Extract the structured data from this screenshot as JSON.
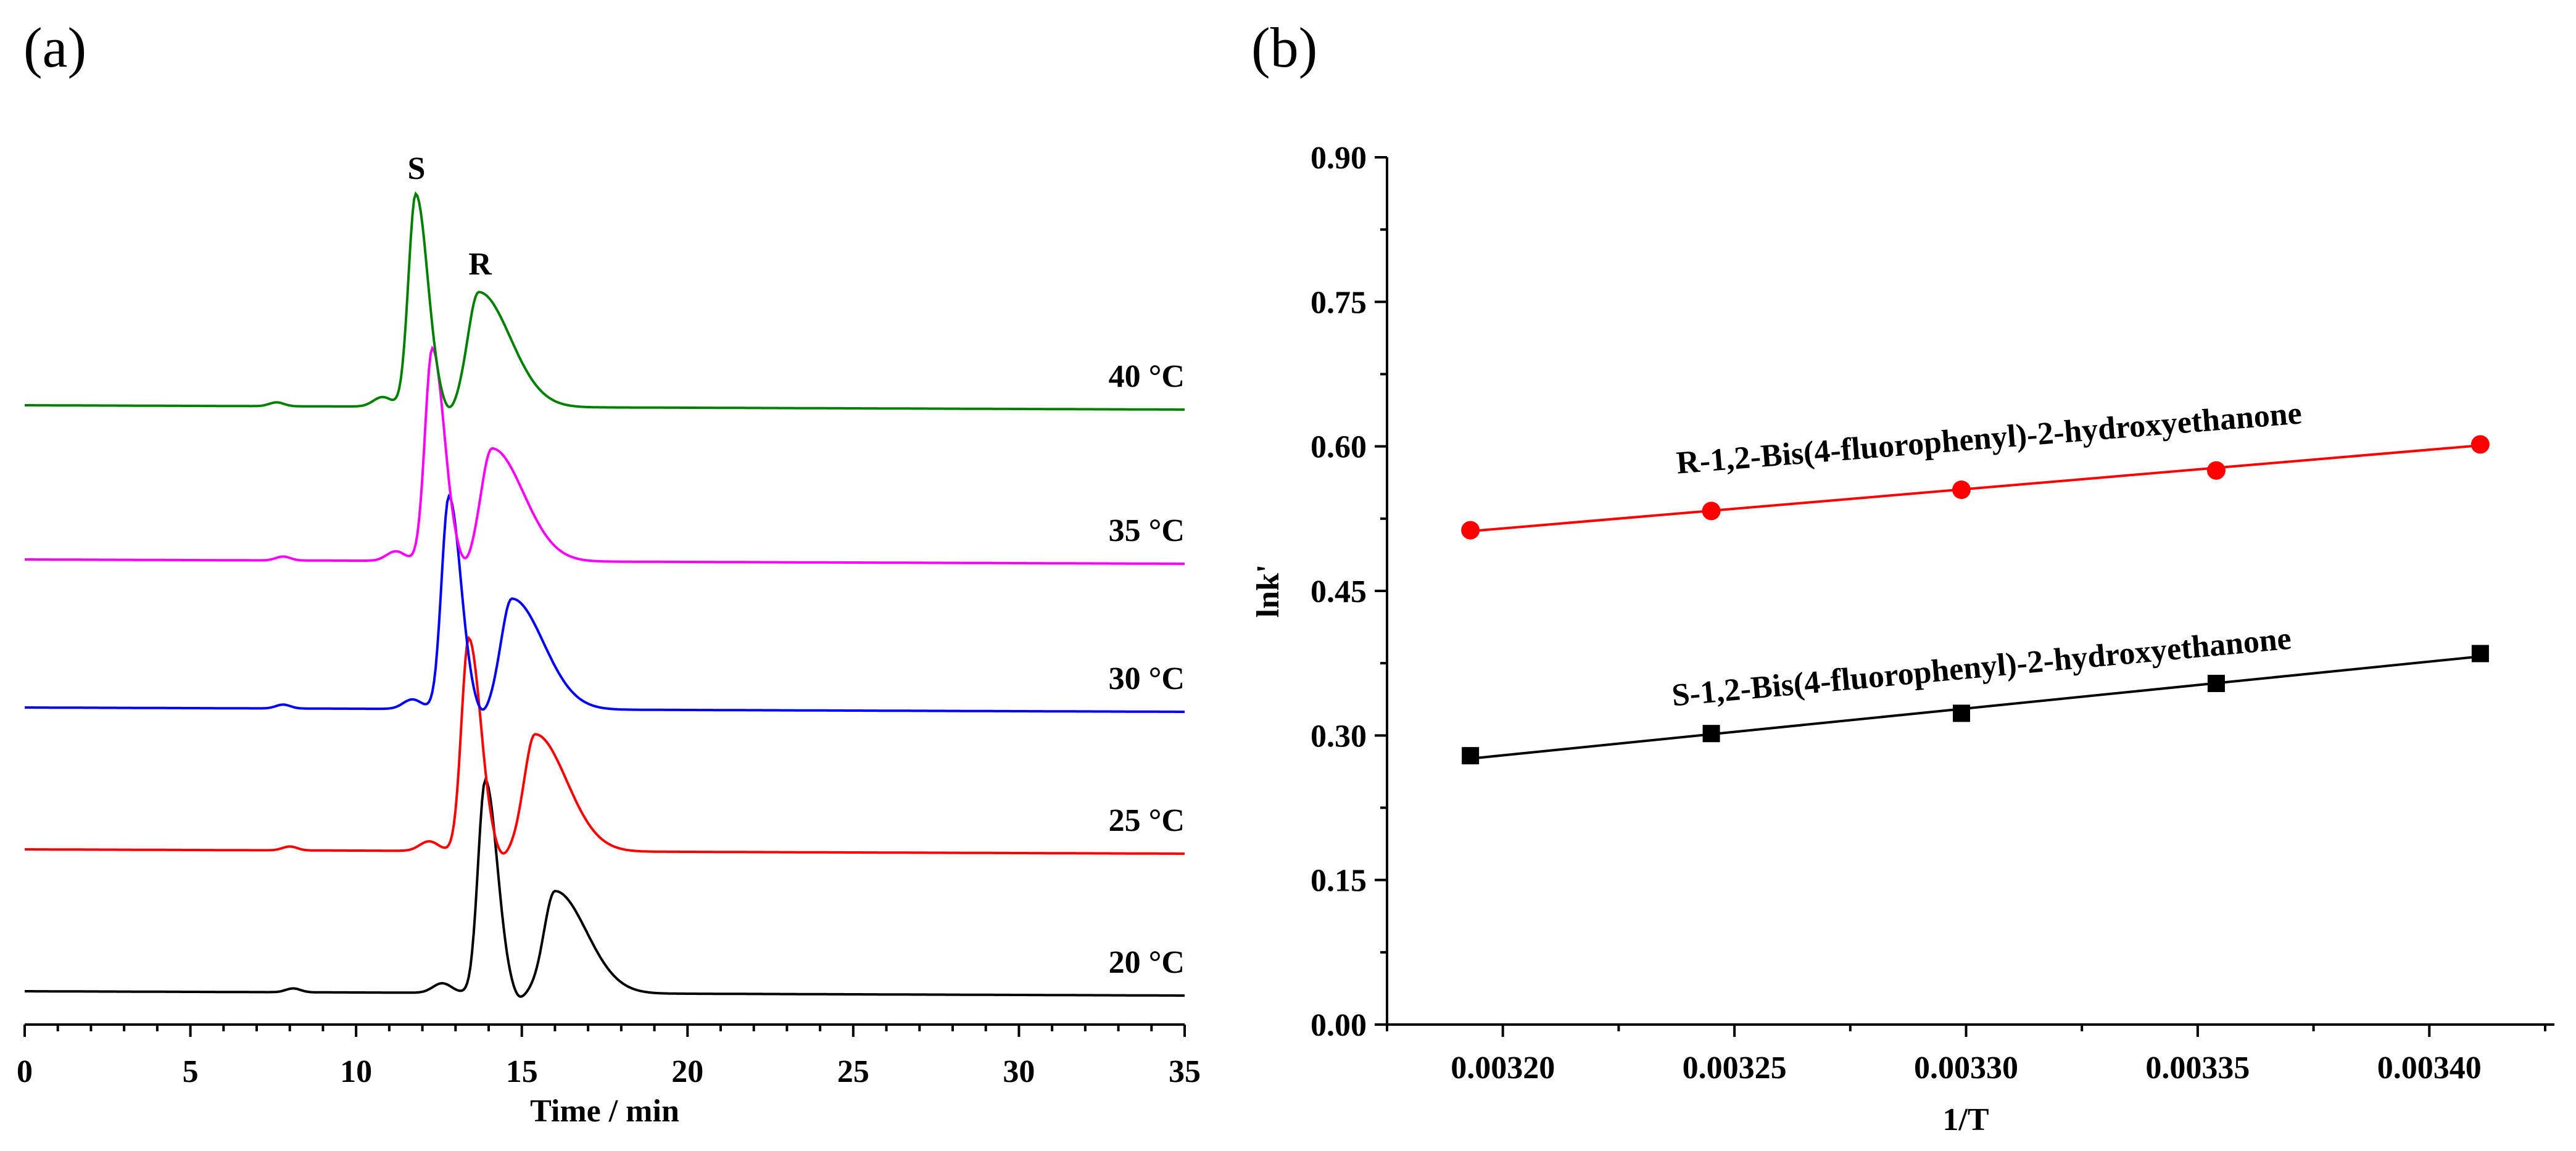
{
  "panel_a": {
    "label": "(a)",
    "peak_labels": {
      "s": "S",
      "r": "R"
    }
  },
  "panel_b": {
    "label": "(b)"
  },
  "chart_data": [
    {
      "type": "line",
      "title": "",
      "xlabel": "Time / min",
      "ylabel": "",
      "xlim": [
        0,
        35
      ],
      "xticks": [
        "0",
        "5",
        "10",
        "15",
        "20",
        "25",
        "30",
        "35"
      ],
      "y_axis_visible": false,
      "series": [
        {
          "name": "20 °C",
          "label": "20 °C",
          "color": "#000000",
          "s_peak_time": 13.9,
          "r_peak_time": 16.0,
          "s_peak_height": 1.0,
          "r_peak_height": 0.48,
          "minor_peak_time": 8.1,
          "shoulder_time": 12.6
        },
        {
          "name": "25 °C",
          "label": "25 °C",
          "color": "#ff0000",
          "s_peak_time": 13.4,
          "r_peak_time": 15.4,
          "s_peak_height": 1.0,
          "r_peak_height": 0.55,
          "minor_peak_time": 8.0,
          "shoulder_time": 12.2
        },
        {
          "name": "30 °C",
          "label": "30 °C",
          "color": "#0000ff",
          "s_peak_time": 12.8,
          "r_peak_time": 14.7,
          "s_peak_height": 1.0,
          "r_peak_height": 0.52,
          "minor_peak_time": 7.8,
          "shoulder_time": 11.7
        },
        {
          "name": "35 °C",
          "label": "35 °C",
          "color": "#ff00ff",
          "s_peak_time": 12.3,
          "r_peak_time": 14.1,
          "s_peak_height": 1.0,
          "r_peak_height": 0.53,
          "minor_peak_time": 7.8,
          "shoulder_time": 11.2
        },
        {
          "name": "40 °C",
          "label": "40 °C",
          "color": "#008000",
          "s_peak_time": 11.8,
          "r_peak_time": 13.7,
          "s_peak_height": 1.0,
          "r_peak_height": 0.54,
          "minor_peak_time": 7.6,
          "shoulder_time": 10.8
        }
      ]
    },
    {
      "type": "scatter",
      "title": "",
      "xlabel": "1/T",
      "ylabel": "lnk'",
      "xlim": [
        0.003175,
        0.003427
      ],
      "ylim": [
        0.0,
        0.9
      ],
      "xticks": [
        "0.00320",
        "0.00325",
        "0.00330",
        "0.00335",
        "0.00340"
      ],
      "yticks": [
        "0.00",
        "0.15",
        "0.30",
        "0.45",
        "0.60",
        "0.75",
        "0.90"
      ],
      "series": [
        {
          "name": "R-1,2-Bis(4-fluorophenyl)-2-hydroxyethanone",
          "color": "#ff0000",
          "marker": "circle",
          "x": [
            0.003193,
            0.003245,
            0.003299,
            0.003354,
            0.003411
          ],
          "y": [
            0.513,
            0.533,
            0.555,
            0.575,
            0.602
          ],
          "fit": [
            [
              0.003193,
              0.512
            ],
            [
              0.003411,
              0.601
            ]
          ]
        },
        {
          "name": "S-1,2-Bis(4-fluorophenyl)-2-hydroxyethanone",
          "color": "#000000",
          "marker": "square",
          "x": [
            0.003193,
            0.003245,
            0.003299,
            0.003354,
            0.003411
          ],
          "y": [
            0.279,
            0.302,
            0.323,
            0.354,
            0.385
          ],
          "fit": [
            [
              0.003193,
              0.276
            ],
            [
              0.003411,
              0.382
            ]
          ]
        }
      ]
    }
  ]
}
